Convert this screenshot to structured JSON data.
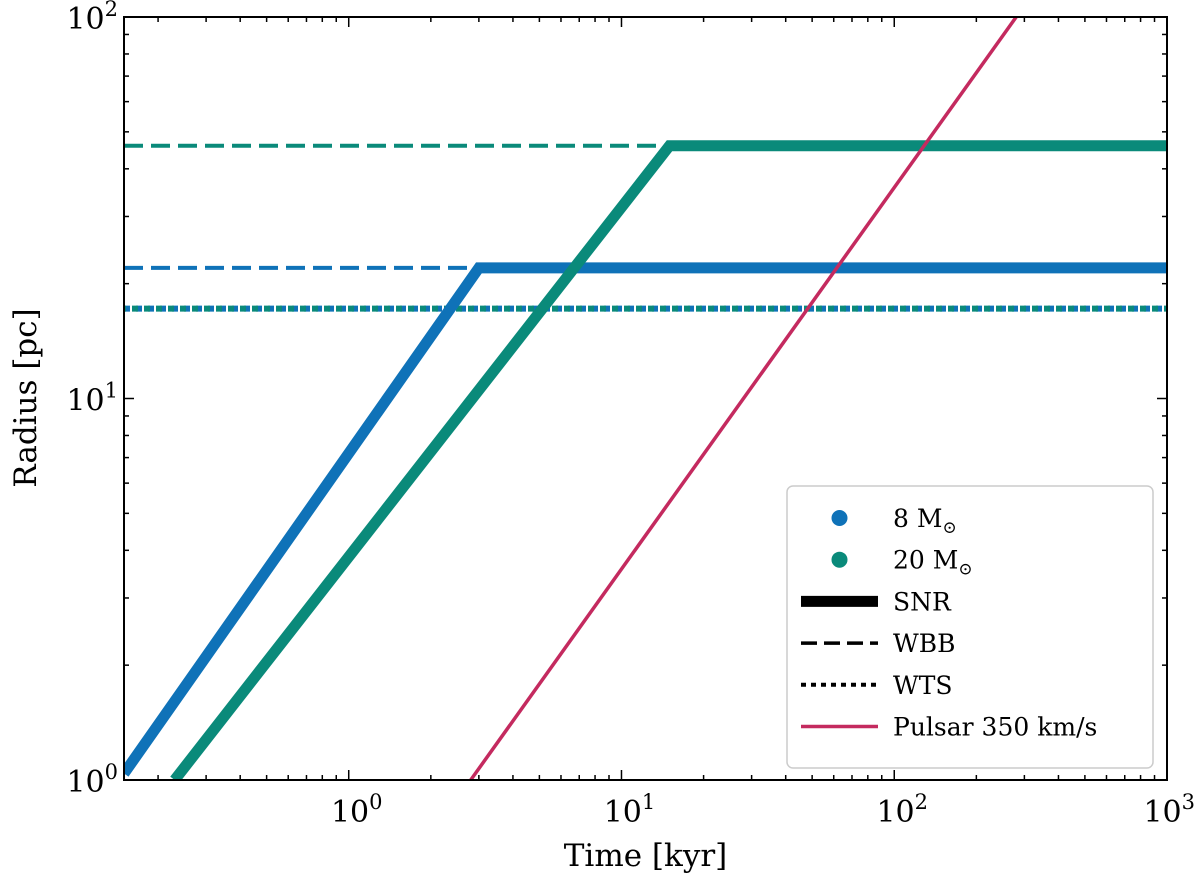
{
  "chart_data": {
    "type": "line",
    "xscale": "log",
    "yscale": "log",
    "xlim": [
      0.15,
      1000
    ],
    "ylim": [
      1,
      100
    ],
    "xlabel": "Time [kyr]",
    "ylabel": "Radius [pc]",
    "x_ticks": [
      {
        "value": 1,
        "base": "10",
        "exp": "0"
      },
      {
        "value": 10,
        "base": "10",
        "exp": "1"
      },
      {
        "value": 100,
        "base": "10",
        "exp": "2"
      },
      {
        "value": 1000,
        "base": "10",
        "exp": "3"
      }
    ],
    "y_ticks": [
      {
        "value": 1,
        "base": "10",
        "exp": "0"
      },
      {
        "value": 10,
        "base": "10",
        "exp": "1"
      },
      {
        "value": 100,
        "base": "10",
        "exp": "2"
      }
    ],
    "colors": {
      "m8": "#0f72b8",
      "m20": "#0a8a7a",
      "pulsar": "#c42a5f"
    },
    "series": [
      {
        "name": "8 Msun SNR",
        "style": "solid-thick",
        "color_key": "m8",
        "points": [
          [
            0.15,
            1.04
          ],
          [
            3.0,
            22.0
          ],
          [
            1000,
            22.0
          ]
        ]
      },
      {
        "name": "20 Msun SNR",
        "style": "solid-thick",
        "color_key": "m20",
        "points": [
          [
            0.23,
            1.0
          ],
          [
            15.0,
            46.0
          ],
          [
            1000,
            46.0
          ]
        ]
      },
      {
        "name": "8 Msun WBB",
        "style": "dashed",
        "color_key": "m8",
        "points": [
          [
            0.15,
            22.0
          ],
          [
            3.0,
            22.0
          ]
        ]
      },
      {
        "name": "20 Msun WBB",
        "style": "dashed",
        "color_key": "m20",
        "points": [
          [
            0.15,
            46.0
          ],
          [
            15.0,
            46.0
          ]
        ]
      },
      {
        "name": "8 Msun WTS",
        "style": "dotted",
        "color_key": "m8",
        "points": [
          [
            0.15,
            17.2
          ],
          [
            1000,
            17.2
          ]
        ]
      },
      {
        "name": "20 Msun WTS",
        "style": "dotted",
        "color_key": "m20",
        "points": [
          [
            0.15,
            17.2
          ],
          [
            1000,
            17.2
          ]
        ],
        "offset": 4
      },
      {
        "name": "Pulsar 350 km/s",
        "style": "solid-thin",
        "color_key": "pulsar",
        "points": [
          [
            2.8,
            1.0
          ],
          [
            280,
            100.0
          ]
        ]
      }
    ],
    "legend": {
      "placement": "lower-right",
      "entries": [
        {
          "kind": "dot",
          "color_key": "m8",
          "label": "8 M",
          "sub": "⊙"
        },
        {
          "kind": "dot",
          "color_key": "m20",
          "label": "20 M",
          "sub": "⊙"
        },
        {
          "kind": "line-thick",
          "label": "SNR"
        },
        {
          "kind": "line-dashed",
          "label": "WBB"
        },
        {
          "kind": "line-dotted",
          "label": "WTS"
        },
        {
          "kind": "line-pulsar",
          "color_key": "pulsar",
          "label": "Pulsar 350 km/s"
        }
      ]
    }
  }
}
